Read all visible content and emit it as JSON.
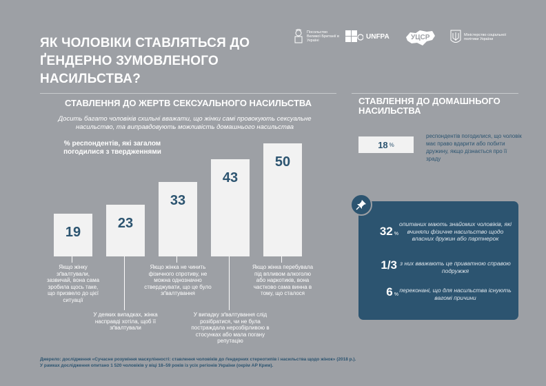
{
  "title": "ЯК ЧОЛОВІКИ СТАВЛЯТЬСЯ ДО ҐЕНДЕРНО ЗУМОВЛЕНОГО НАСИЛЬСТВА?",
  "logos": {
    "uk_embassy": "Посольство Великої Британії в Україні",
    "unfpa": "UNFPA",
    "ucsr": "УЦСР",
    "ministry": "Міністерство соціальної політики України"
  },
  "left_section": {
    "title": "СТАВЛЕННЯ ДО ЖЕРТВ СЕКСУАЛЬНОГО НАСИЛЬСТВА",
    "subtitle": "Досить багато чоловіків схильні вважати, що жінки самі провокують сексуальне насильство, та виправдовують можливість домашнього насильства",
    "pct_label": "% респондентів, які загалом погодилися з твердженнями"
  },
  "chart_data": {
    "type": "bar",
    "categories": [
      "Якщо жінку зґвалтували, зазвичай, вона сама зробила щось таке, що призвело до цієї ситуації",
      "У деяких випадках, жінка насправді хотіла, щоб її зґвалтували",
      "Якщо жінка не чинить фізичного спротиву, не можна однозначно стверджувати, що це було зґвалтування",
      "У випадку зґвалтування слід розібратися, чи не була постраждала нерозбірливою в стосунках або мала погану репутацію",
      "Якщо жінка перебувала під впливом алкоголю або наркотиків, вона частково сама винна в тому, що сталося"
    ],
    "values": [
      19,
      23,
      33,
      43,
      50
    ],
    "ylim": [
      0,
      50
    ]
  },
  "right_section": {
    "title": "СТАВЛЕННЯ ДО ДОМАШНЬОГО НАСИЛЬСТВА",
    "stat_value": "18",
    "stat_unit": "%",
    "stat_text": "респондентів погодилися, що чоловік має право вдарити або побити дружину, якщо дізнається про її зраду",
    "box": [
      {
        "value": "32",
        "unit": "%",
        "text": "опитаних мають знайомих чоловіків, які вчиняли фізичне насильство щодо власних дружин або партнерок"
      },
      {
        "value": "1/3",
        "unit": "",
        "text": "з них вважають це приватною справою подружжя"
      },
      {
        "value": "6",
        "unit": "%",
        "text": "переконані, що для насильства існують вагомі причини"
      }
    ]
  },
  "source": {
    "line1": "Джерело: дослідження «Сучасне розуміння маскулінності: ставлення чоловіків до ґендерних стереотипів і насильства щодо жінок» (2018 р.).",
    "line2": "У рамках дослідження опитано 1 520 чоловіків у віці 18–59 років із усіх регіонів України (окрім АР Крим)."
  },
  "colors": {
    "background": "#9da0a5",
    "accent": "#2c5470",
    "bar": "#f2f2f2"
  }
}
